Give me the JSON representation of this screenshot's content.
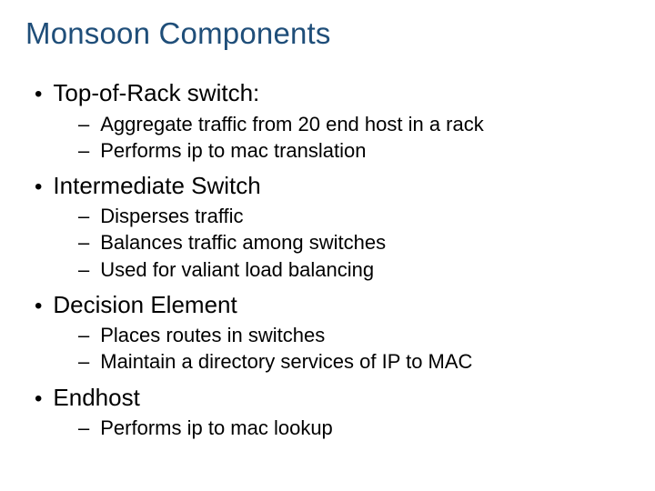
{
  "title": "Monsoon Components",
  "colors": {
    "title_color": "#1f4e79",
    "body_text_color": "#000000",
    "background": "#ffffff"
  },
  "typography": {
    "title_fontsize": 33,
    "l1_fontsize": 26,
    "l2_fontsize": 22,
    "font_family": "Arial"
  },
  "bullets": [
    {
      "label": "Top-of-Rack switch:",
      "subs": [
        "Aggregate traffic from 20 end host in a rack",
        "Performs ip to mac translation"
      ]
    },
    {
      "label": "Intermediate Switch",
      "subs": [
        "Disperses traffic",
        "Balances traffic among switches",
        "Used for valiant load balancing"
      ]
    },
    {
      "label": "Decision Element",
      "subs": [
        "Places routes in switches",
        "Maintain a directory services of IP to MAC"
      ]
    },
    {
      "label": "Endhost",
      "subs": [
        "Performs ip to mac lookup"
      ]
    }
  ]
}
